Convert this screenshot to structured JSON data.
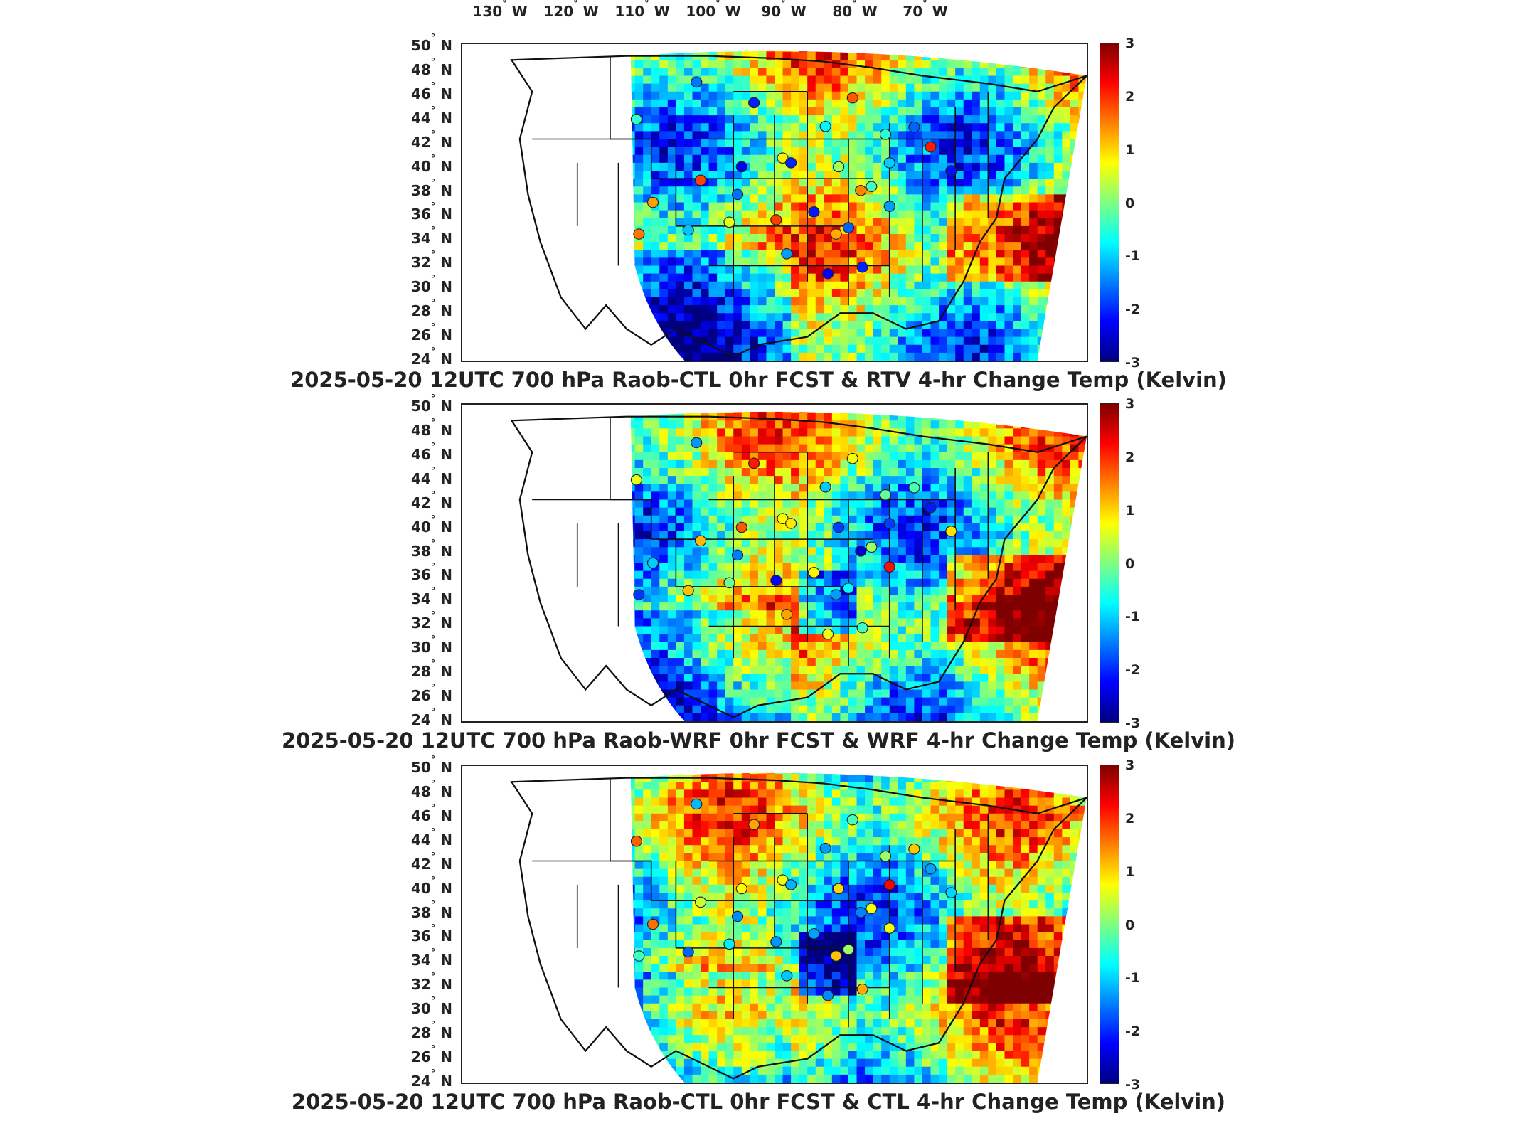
{
  "longitude_labels": [
    "130",
    "120",
    "110",
    "100",
    "90",
    "80",
    "70"
  ],
  "longitude_suffix": "W",
  "latitude_labels": [
    "50",
    "48",
    "46",
    "44",
    "42",
    "40",
    "38",
    "36",
    "34",
    "32",
    "30",
    "28",
    "26",
    "24"
  ],
  "latitude_suffix": "N",
  "colorbar_ticks": [
    "3",
    "2",
    "1",
    "0",
    "-1",
    "-2",
    "-3"
  ],
  "colorscale": [
    "#00007f",
    "#0000ff",
    "#007fff",
    "#00ffff",
    "#7fff7f",
    "#ffff00",
    "#ff7f00",
    "#ff0000",
    "#7f0000"
  ],
  "panels": [
    {
      "title": "2025-05-20 12UTC 700 hPa Raob-CTL 0hr FCST & RTV 4-hr Change Temp (Kelvin)"
    },
    {
      "title": "2025-05-20 12UTC 700 hPa Raob-WRF 0hr FCST & WRF 4-hr Change Temp (Kelvin)"
    },
    {
      "title": "2025-05-20 12UTC 700 hPa Raob-CTL 0hr FCST & CTL 4-hr Change Temp (Kelvin)"
    }
  ]
}
